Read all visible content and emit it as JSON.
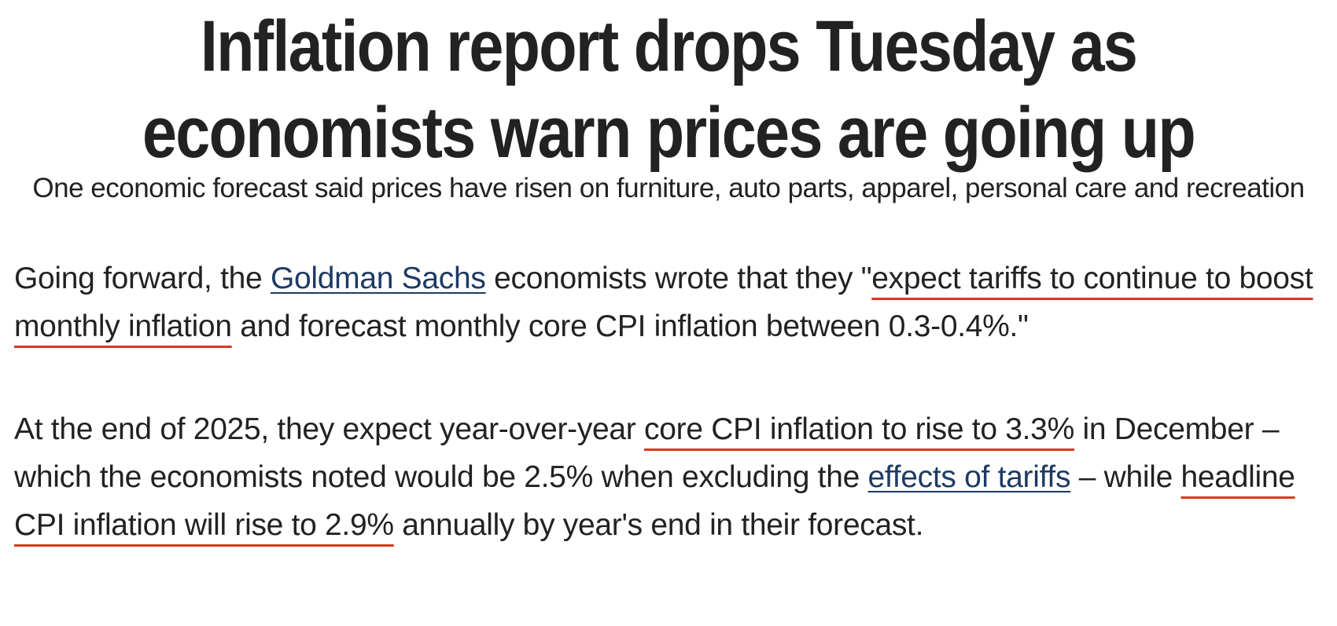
{
  "article": {
    "headline": "Inflation report drops Tuesday as economists warn prices are going up",
    "subheadline": "One economic forecast said prices have risen on furniture, auto parts, apparel, personal care and recreation",
    "paragraphs": [
      [
        "Going forward, the ",
        "Goldman Sachs",
        " economists wrote that they \"",
        "expect tariffs to continue to boost monthly inflation",
        " and forecast monthly core CPI inflation between 0.3-0.4%.\""
      ],
      [
        "At the end of 2025, they expect year-over-year ",
        "core CPI inflation to rise to 3.3%",
        " in December – which the economists noted would be 2.5% when excluding the ",
        "effects of tariffs",
        " – while ",
        "headline CPI inflation will rise to 2.9%",
        " annually by year's end in their forecast."
      ]
    ]
  }
}
